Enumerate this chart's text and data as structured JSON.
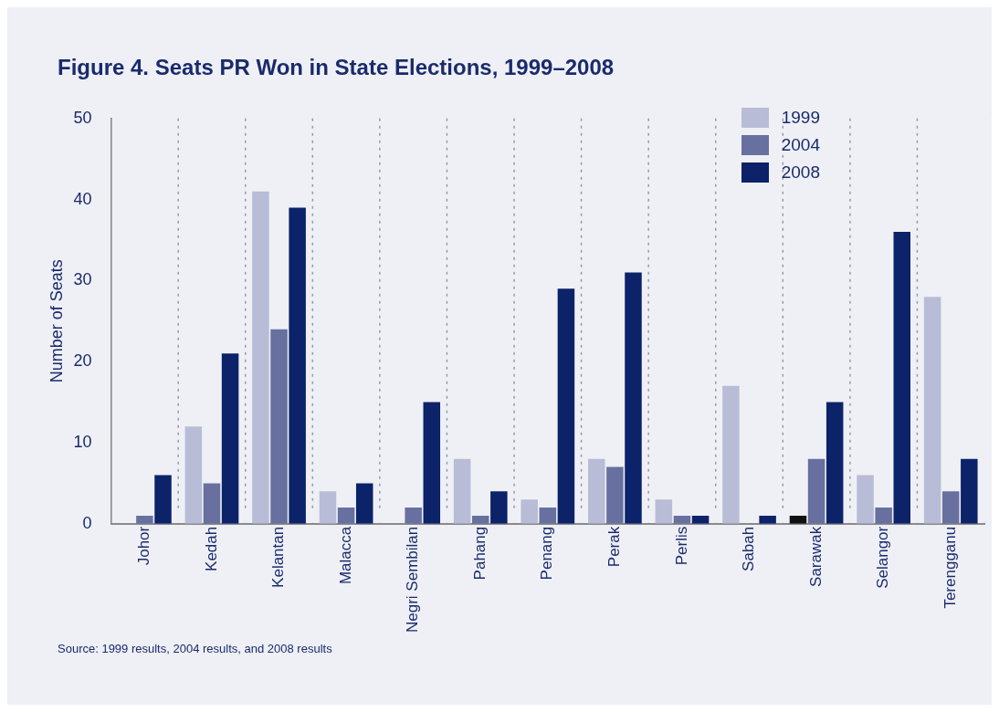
{
  "chart_data": {
    "type": "bar",
    "title": "Figure 4. Seats PR Won in State Elections, 1999–2008",
    "ylabel": "Number of Seats",
    "categories": [
      "Johor",
      "Kedah",
      "Kelantan",
      "Malacca",
      "Negri Sembilan",
      "Pahang",
      "Penang",
      "Perak",
      "Perlis",
      "Sabah",
      "Sarawak",
      "Selangor",
      "Terengganu"
    ],
    "series": [
      {
        "name": "1999",
        "color": "#b9bcd6",
        "colors": [
          "#b9bcd6",
          "#b9bcd6",
          "#b9bcd6",
          "#b9bcd6",
          "#b9bcd6",
          "#b9bcd6",
          "#b9bcd6",
          "#b9bcd6",
          "#b9bcd6",
          "#b9bcd6",
          "#111111",
          "#b9bcd6",
          "#b9bcd6"
        ],
        "values": [
          0,
          12,
          41,
          4,
          0,
          8,
          3,
          8,
          3,
          17,
          1,
          6,
          28
        ]
      },
      {
        "name": "2004",
        "color": "#67709f",
        "values": [
          1,
          5,
          24,
          2,
          2,
          1,
          2,
          7,
          1,
          0,
          8,
          2,
          4
        ]
      },
      {
        "name": "2008",
        "color": "#0c2269",
        "values": [
          6,
          21,
          39,
          5,
          15,
          4,
          29,
          31,
          1,
          1,
          15,
          36,
          8
        ]
      }
    ],
    "ylim": [
      0,
      50
    ],
    "yticks": [
      0,
      10,
      20,
      30,
      40,
      50
    ],
    "grid": "x",
    "legend": "top right",
    "annotations": [
      "Source: 1999 results, 2004 results, and 2008 results"
    ]
  }
}
